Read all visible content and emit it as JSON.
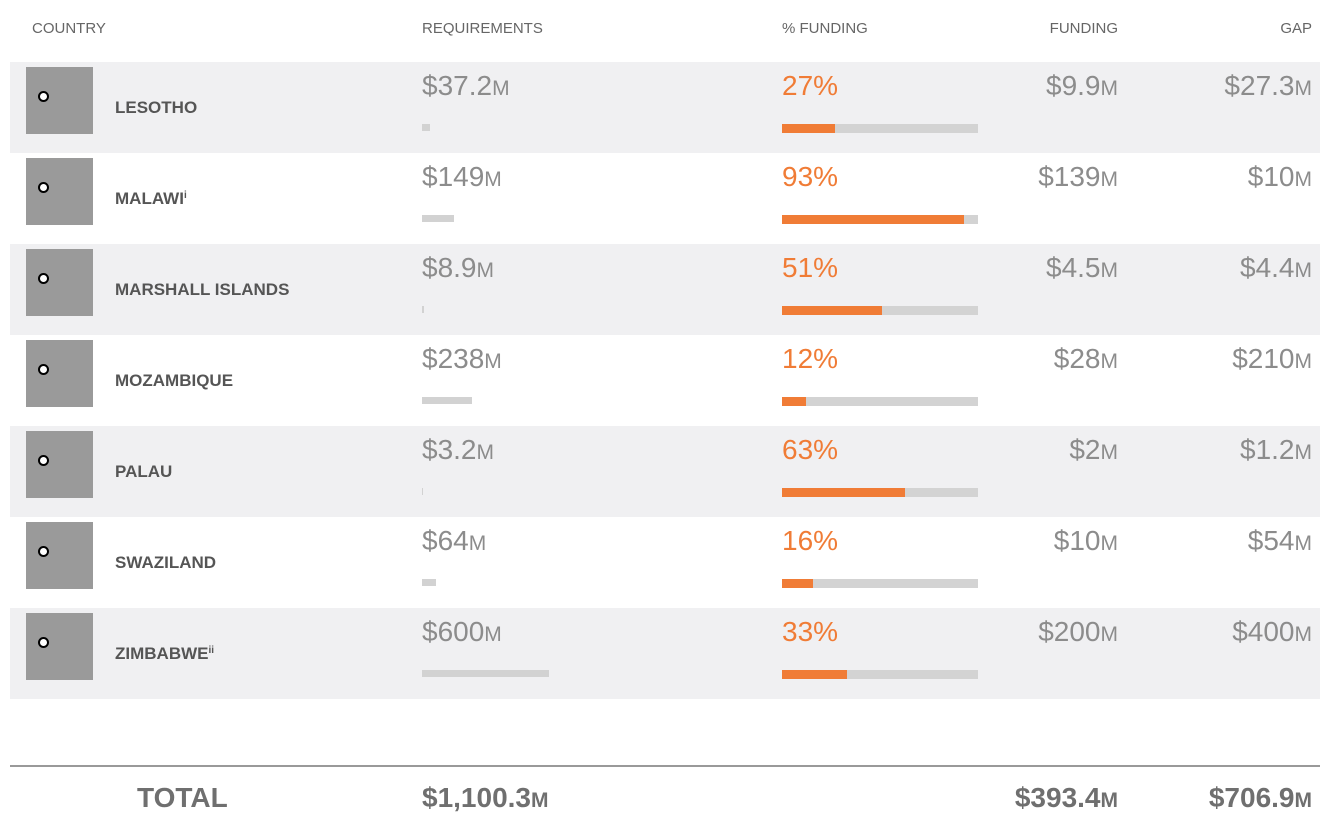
{
  "header": {
    "country": "COUNTRY",
    "requirements": "REQUIREMENTS",
    "pct_funding": "% FUNDING",
    "funding": "FUNDING",
    "gap": "GAP"
  },
  "req_lim": [
    0,
    600
  ],
  "pct_lim": [
    0,
    100
  ],
  "rows": [
    {
      "country": "LESOTHO",
      "note": null,
      "requirements": {
        "value": 37.2,
        "label": "$37.2M"
      },
      "pct_funding": {
        "value": 27,
        "label": "27%"
      },
      "funding": "$9.9M",
      "gap": "$27.3M"
    },
    {
      "country": "MALAWI",
      "note": "i",
      "requirements": {
        "value": 149,
        "label": "$149M"
      },
      "pct_funding": {
        "value": 93,
        "label": "93%"
      },
      "funding": "$139M",
      "gap": "$10M"
    },
    {
      "country": "MARSHALL ISLANDS",
      "note": null,
      "requirements": {
        "value": 8.9,
        "label": "$8.9M"
      },
      "pct_funding": {
        "value": 51,
        "label": "51%"
      },
      "funding": "$4.5M",
      "gap": "$4.4M"
    },
    {
      "country": "MOZAMBIQUE",
      "note": null,
      "requirements": {
        "value": 238,
        "label": "$238M"
      },
      "pct_funding": {
        "value": 12,
        "label": "12%"
      },
      "funding": "$28M",
      "gap": "$210M"
    },
    {
      "country": "PALAU",
      "note": null,
      "requirements": {
        "value": 3.2,
        "label": "$3.2M"
      },
      "pct_funding": {
        "value": 63,
        "label": "63%"
      },
      "funding": "$2M",
      "gap": "$1.2M"
    },
    {
      "country": "SWAZILAND",
      "note": null,
      "requirements": {
        "value": 64,
        "label": "$64M"
      },
      "pct_funding": {
        "value": 16,
        "label": "16%"
      },
      "funding": "$10M",
      "gap": "$54M"
    },
    {
      "country": "ZIMBABWE",
      "note": "ii",
      "requirements": {
        "value": 600,
        "label": "$600M"
      },
      "pct_funding": {
        "value": 33,
        "label": "33%"
      },
      "funding": "$200M",
      "gap": "$400M"
    }
  ],
  "total": {
    "label": "TOTAL",
    "requirements": "$1,100.3M",
    "funding": "$393.4M",
    "gap": "$706.9M"
  }
}
